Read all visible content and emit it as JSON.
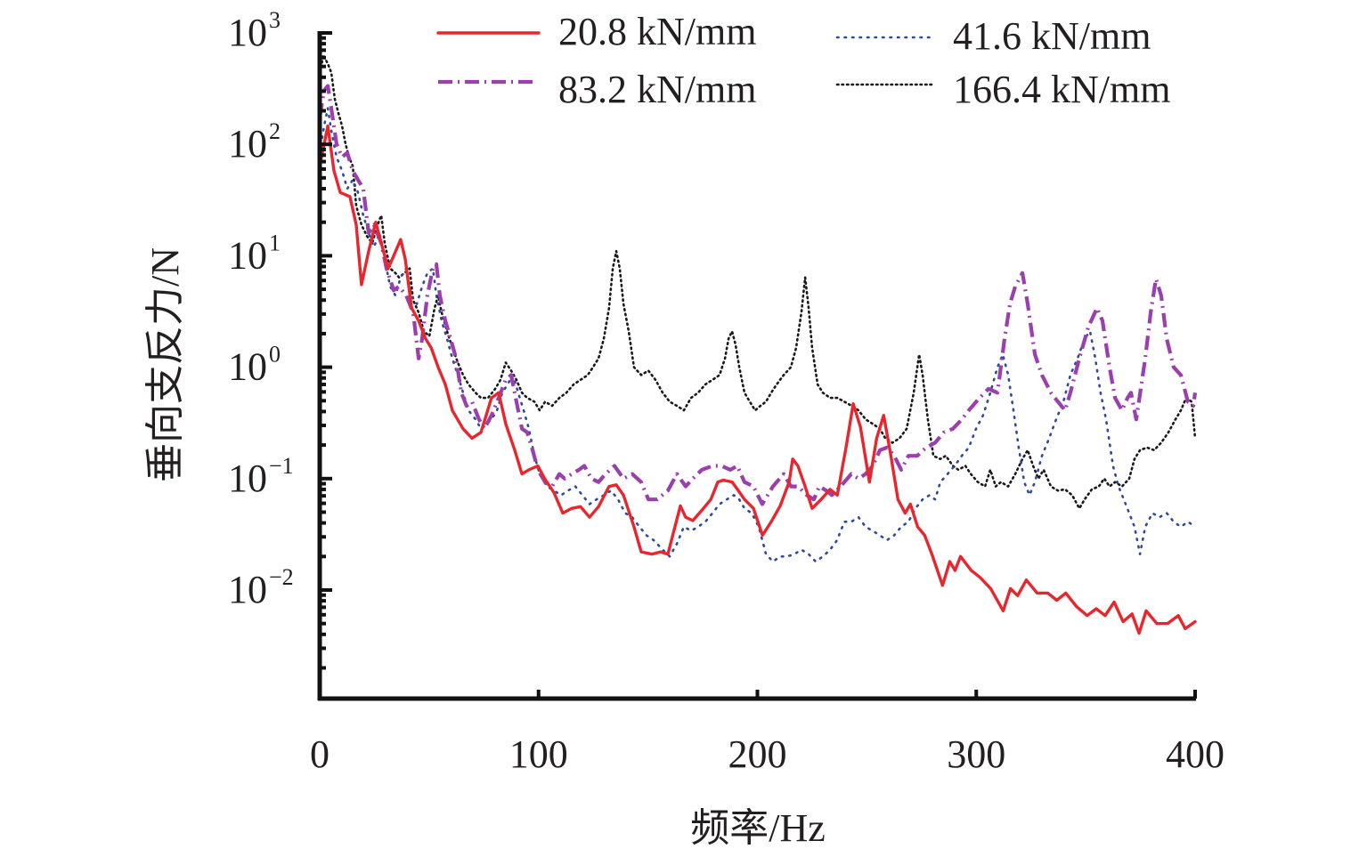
{
  "chart_data": {
    "type": "line",
    "title": "",
    "xlabel": "频率/Hz",
    "ylabel": "垂向支反力/N",
    "xscale": "linear",
    "yscale": "log",
    "xlim": [
      0,
      400
    ],
    "ylim": [
      0.00106,
      1000
    ],
    "xticks": [
      0,
      100,
      200,
      300,
      400
    ],
    "xtick_labels": [
      "0",
      "100",
      "200",
      "300",
      "400"
    ],
    "yticks": [
      1000,
      100,
      10,
      1,
      0.1,
      0.01
    ],
    "ytick_labels": [
      {
        "base": "10",
        "exp": "3"
      },
      {
        "base": "10",
        "exp": "2"
      },
      {
        "base": "10",
        "exp": "1"
      },
      {
        "base": "10",
        "exp": "0"
      },
      {
        "base": "10",
        "exp": "−1"
      },
      {
        "base": "10",
        "exp": "−2"
      }
    ],
    "grid": false,
    "legend": {
      "position": "top",
      "columns": 2
    },
    "series": [
      {
        "name": "20.8 kN/mm",
        "color": "#e8262d",
        "style": "solid",
        "x": [
          0,
          3.7,
          6.5,
          9.4,
          13.8,
          16.7,
          19.1,
          22.4,
          25.6,
          28.1,
          31.3,
          33.8,
          37.0,
          39.1,
          42.0,
          45.2,
          48.4,
          50.9,
          54.1,
          57.4,
          60.6,
          65.5,
          69.6,
          73.7,
          78.5,
          81.8,
          85.0,
          89.1,
          92.4,
          95.6,
          99.7,
          102.8,
          107.0,
          111.1,
          115.1,
          119.2,
          123.3,
          127.4,
          132.2,
          135.5,
          138.8,
          143.6,
          146.9,
          151.8,
          155.8,
          159.1,
          162.3,
          164.8,
          167.2,
          170.5,
          174.6,
          178.7,
          181.9,
          184.4,
          188.5,
          190.9,
          194.1,
          198.2,
          202.3,
          206.3,
          210.4,
          214.5,
          216.1,
          218.5,
          221.8,
          225.0,
          229.1,
          233.2,
          236.5,
          240.5,
          243.8,
          247.1,
          251.2,
          254.5,
          257.7,
          261.0,
          264.2,
          267.5,
          269.9,
          273.2,
          276.4,
          279.7,
          284.6,
          287.9,
          290.3,
          292.8,
          297.7,
          301.7,
          306.6,
          312.3,
          315.6,
          318.9,
          322.9,
          327.8,
          332.7,
          336.8,
          340.9,
          345.8,
          350.7,
          354.8,
          358.9,
          363.0,
          367.1,
          371.2,
          374.4,
          377.6,
          382.5,
          387.4,
          392.3,
          395.5,
          400
        ],
        "y": [
          64,
          146,
          58,
          37,
          34,
          19,
          5.5,
          11,
          20,
          13,
          7.7,
          10,
          14,
          9.3,
          3.4,
          2.6,
          1.8,
          1.5,
          1.0,
          0.7,
          0.41,
          0.28,
          0.23,
          0.26,
          0.53,
          0.59,
          0.31,
          0.18,
          0.11,
          0.12,
          0.13,
          0.1,
          0.075,
          0.049,
          0.054,
          0.056,
          0.045,
          0.056,
          0.085,
          0.088,
          0.071,
          0.037,
          0.022,
          0.021,
          0.022,
          0.021,
          0.037,
          0.057,
          0.045,
          0.042,
          0.052,
          0.065,
          0.093,
          0.097,
          0.093,
          0.08,
          0.065,
          0.054,
          0.031,
          0.041,
          0.057,
          0.093,
          0.15,
          0.13,
          0.085,
          0.054,
          0.065,
          0.08,
          0.071,
          0.19,
          0.47,
          0.29,
          0.093,
          0.23,
          0.37,
          0.16,
          0.065,
          0.049,
          0.059,
          0.037,
          0.031,
          0.021,
          0.011,
          0.018,
          0.015,
          0.02,
          0.015,
          0.013,
          0.0103,
          0.0065,
          0.0103,
          0.0089,
          0.0123,
          0.0094,
          0.0094,
          0.0081,
          0.0094,
          0.0071,
          0.0059,
          0.0068,
          0.0059,
          0.0078,
          0.0052,
          0.0061,
          0.0041,
          0.0065,
          0.005,
          0.005,
          0.0059,
          0.0045,
          0.0052
        ]
      },
      {
        "name": "41.6 kN/mm",
        "color": "#2e4a9a",
        "style": "dotted",
        "x": [
          0,
          2.0,
          3.7,
          5.3,
          7.7,
          10.2,
          12.6,
          15.1,
          17.5,
          19.9,
          22.4,
          24.8,
          27.3,
          29.7,
          32.2,
          34.6,
          37.0,
          39.5,
          41.9,
          44.4,
          46.8,
          49.2,
          51.7,
          53.3,
          55.7,
          58.2,
          60.6,
          63.1,
          65.5,
          68.0,
          71.2,
          73.7,
          76.1,
          78.5,
          81.0,
          83.4,
          85.8,
          88.3,
          90.7,
          93.2,
          95.6,
          98.1,
          100.5,
          103.8,
          107.0,
          110.3,
          113.5,
          116.8,
          120.0,
          123.3,
          126.5,
          129.8,
          133.1,
          136.3,
          139.6,
          142.8,
          146.1,
          149.3,
          152.6,
          156.7,
          159.9,
          163.2,
          166.4,
          169.7,
          172.9,
          176.2,
          179.5,
          182.7,
          186.0,
          189.2,
          191.7,
          194.1,
          197.4,
          200.6,
          203.9,
          207.1,
          210.4,
          213.6,
          216.9,
          220.1,
          223.4,
          226.6,
          229.9,
          233.2,
          236.4,
          239.7,
          242.9,
          246.2,
          249.4,
          252.7,
          255.9,
          259.2,
          262.5,
          265.7,
          269.0,
          272.2,
          275.5,
          278.7,
          281.2,
          283.6,
          286.9,
          290.1,
          293.4,
          296.6,
          299.9,
          303.1,
          306.4,
          309.7,
          312.1,
          314.6,
          317.0,
          319.4,
          321.9,
          324.3,
          326.8,
          330.0,
          333.3,
          336.5,
          339.8,
          343.0,
          346.3,
          349.5,
          352.0,
          354.4,
          356.8,
          359.3,
          362.5,
          365.0,
          367.4,
          369.9,
          372.3,
          374.8,
          377.2,
          380.5,
          383.7,
          387.0,
          390.2,
          393.5,
          396.7,
          400
        ],
        "y": [
          84,
          146,
          211,
          133,
          77,
          58,
          40,
          48,
          37,
          23,
          16,
          12,
          16,
          9.3,
          5.3,
          4.4,
          6.4,
          7.7,
          4.4,
          3.7,
          5.3,
          7.0,
          7.7,
          4.4,
          2.6,
          1.8,
          1.2,
          0.85,
          0.59,
          0.41,
          0.34,
          0.28,
          0.31,
          0.34,
          0.41,
          0.59,
          0.7,
          0.85,
          0.59,
          0.41,
          0.28,
          0.16,
          0.11,
          0.085,
          0.078,
          0.071,
          0.078,
          0.085,
          0.071,
          0.059,
          0.065,
          0.071,
          0.078,
          0.065,
          0.049,
          0.045,
          0.037,
          0.031,
          0.028,
          0.023,
          0.02,
          0.026,
          0.037,
          0.034,
          0.037,
          0.041,
          0.049,
          0.059,
          0.065,
          0.071,
          0.065,
          0.054,
          0.049,
          0.037,
          0.021,
          0.018,
          0.02,
          0.02,
          0.021,
          0.023,
          0.021,
          0.018,
          0.02,
          0.023,
          0.028,
          0.041,
          0.041,
          0.045,
          0.037,
          0.034,
          0.031,
          0.028,
          0.031,
          0.037,
          0.041,
          0.054,
          0.065,
          0.071,
          0.065,
          0.093,
          0.11,
          0.13,
          0.16,
          0.19,
          0.28,
          0.37,
          0.59,
          1.0,
          1.3,
          0.85,
          0.41,
          0.19,
          0.093,
          0.071,
          0.093,
          0.16,
          0.23,
          0.34,
          0.49,
          0.85,
          1.2,
          1.8,
          2.1,
          1.2,
          0.59,
          0.34,
          0.13,
          0.085,
          0.065,
          0.049,
          0.037,
          0.021,
          0.037,
          0.049,
          0.045,
          0.049,
          0.041,
          0.037,
          0.041,
          0.037
        ]
      },
      {
        "name": "83.2 kN/mm",
        "color": "#9b3fae",
        "style": "dash-dot",
        "x": [
          0,
          2.0,
          3.7,
          5.3,
          7.7,
          10.2,
          12.6,
          15.1,
          17.5,
          19.9,
          22.4,
          24.8,
          28.1,
          30.5,
          33.8,
          36.2,
          39.5,
          42.7,
          45.2,
          46.8,
          49.2,
          51.7,
          53.3,
          54.9,
          57.4,
          59.8,
          62.3,
          64.7,
          67.1,
          69.6,
          72.8,
          75.3,
          78.5,
          81.8,
          85.0,
          87.5,
          89.9,
          92.4,
          94.8,
          97.3,
          99.7,
          103.0,
          106.2,
          109.5,
          111.9,
          115.2,
          118.4,
          120.9,
          124.1,
          127.4,
          130.6,
          134.7,
          138.8,
          142.8,
          146.9,
          150.2,
          154.2,
          159.1,
          163.2,
          167.2,
          170.5,
          174.6,
          179.5,
          183.5,
          187.6,
          190.8,
          194.1,
          198.2,
          202.2,
          207.1,
          212.0,
          215.3,
          218.5,
          222.6,
          225.8,
          228.3,
          231.5,
          234.0,
          238.0,
          242.9,
          246.2,
          249.4,
          252.7,
          256.0,
          259.2,
          262.5,
          265.7,
          269.0,
          273.0,
          277.1,
          281.2,
          285.2,
          289.3,
          293.4,
          296.6,
          301.5,
          305.6,
          309.7,
          312.9,
          315.4,
          317.8,
          321.1,
          323.5,
          326.8,
          330.0,
          334.1,
          337.3,
          340.6,
          343.0,
          347.1,
          351.2,
          355.2,
          357.7,
          360.9,
          363.4,
          366.6,
          369.1,
          370.7,
          373.1,
          377.2,
          379.7,
          382.1,
          384.5,
          387.0,
          390.2,
          393.5,
          396.7,
          399.2,
          400
        ],
        "y": [
          175,
          305,
          334,
          211,
          101,
          77,
          84,
          58,
          48,
          40,
          16,
          19,
          13,
          7.7,
          4.9,
          5.3,
          4.4,
          3.1,
          1.2,
          1.8,
          4.4,
          7.7,
          8.4,
          4.4,
          2.6,
          1.8,
          1.2,
          0.59,
          0.45,
          0.49,
          0.34,
          0.28,
          0.37,
          0.53,
          0.77,
          0.85,
          0.49,
          0.28,
          0.26,
          0.18,
          0.12,
          0.093,
          0.085,
          0.11,
          0.1,
          0.11,
          0.12,
          0.13,
          0.1,
          0.093,
          0.11,
          0.13,
          0.1,
          0.11,
          0.093,
          0.065,
          0.065,
          0.078,
          0.11,
          0.085,
          0.1,
          0.12,
          0.13,
          0.13,
          0.12,
          0.13,
          0.093,
          0.085,
          0.059,
          0.085,
          0.11,
          0.085,
          0.085,
          0.071,
          0.065,
          0.085,
          0.078,
          0.071,
          0.085,
          0.11,
          0.1,
          0.11,
          0.13,
          0.18,
          0.19,
          0.16,
          0.12,
          0.16,
          0.16,
          0.19,
          0.21,
          0.26,
          0.28,
          0.34,
          0.41,
          0.53,
          0.64,
          0.59,
          1.8,
          3.7,
          5.3,
          7.0,
          3.7,
          1.3,
          0.85,
          0.59,
          0.49,
          0.41,
          0.59,
          1.2,
          2.3,
          3.4,
          2.6,
          1.0,
          0.53,
          0.41,
          0.53,
          0.59,
          0.34,
          1.2,
          3.1,
          6.2,
          4.4,
          1.8,
          1.0,
          0.85,
          0.49,
          0.45,
          0.59
        ]
      },
      {
        "name": "166.4 kN/mm",
        "color": "#1a1a1a",
        "style": "dotted-dense",
        "x": [
          0,
          1.6,
          3.7,
          5.3,
          6.9,
          8.5,
          10.2,
          11.8,
          13.4,
          15.1,
          16.7,
          19.1,
          21.6,
          24.0,
          26.5,
          28.1,
          29.7,
          32.2,
          34.6,
          36.2,
          38.7,
          41.1,
          42.7,
          45.2,
          47.6,
          50.1,
          52.5,
          54.1,
          55.7,
          58.2,
          60.6,
          63.1,
          65.5,
          68.0,
          71.2,
          73.7,
          76.9,
          80.2,
          82.6,
          85.0,
          87.5,
          89.9,
          92.4,
          94.8,
          98.1,
          100.5,
          103.0,
          106.2,
          109.5,
          112.7,
          116.0,
          119.2,
          122.5,
          124.9,
          127.4,
          129.8,
          132.2,
          133.9,
          135.5,
          137.1,
          138.8,
          141.2,
          143.6,
          146.9,
          150.2,
          153.4,
          156.7,
          159.9,
          163.2,
          166.4,
          169.7,
          172.9,
          176.2,
          179.5,
          182.7,
          185.2,
          186.8,
          188.4,
          190.0,
          191.7,
          194.1,
          196.5,
          199.0,
          201.4,
          203.9,
          206.3,
          208.8,
          212.0,
          215.3,
          217.7,
          220.1,
          221.8,
          223.4,
          225.0,
          227.5,
          229.9,
          233.2,
          236.5,
          239.7,
          243.0,
          246.2,
          249.5,
          252.7,
          256.0,
          258.4,
          261.7,
          264.9,
          268.2,
          271.4,
          273.9,
          275.5,
          277.9,
          280.4,
          283.6,
          286.1,
          289.3,
          291.8,
          295.0,
          297.5,
          300.7,
          304.0,
          306.4,
          308.9,
          311.3,
          314.6,
          317.8,
          321.1,
          323.5,
          326.0,
          328.4,
          330.8,
          334.1,
          337.3,
          340.6,
          343.8,
          347.1,
          349.5,
          352.8,
          356.0,
          358.5,
          360.9,
          363.4,
          366.6,
          369.9,
          372.3,
          374.8,
          378.0,
          381.3,
          384.5,
          387.8,
          391.0,
          393.5,
          395.9,
          398.4,
          400
        ],
        "y": [
          402,
          636,
          529,
          440,
          254,
          192,
          146,
          101,
          77,
          64,
          28,
          19,
          15,
          13,
          19,
          23,
          13,
          7.7,
          7.0,
          6.4,
          7.0,
          7.7,
          4.0,
          3.1,
          2.1,
          1.9,
          3.4,
          4.4,
          3.1,
          2.1,
          1.5,
          1.1,
          0.85,
          0.7,
          0.59,
          0.53,
          0.53,
          0.64,
          0.77,
          1.1,
          0.93,
          0.77,
          0.59,
          0.53,
          0.49,
          0.41,
          0.49,
          0.45,
          0.53,
          0.59,
          0.7,
          0.77,
          0.85,
          1.0,
          1.2,
          1.8,
          3.4,
          7.7,
          11,
          7.7,
          3.7,
          2.1,
          1.0,
          0.85,
          0.93,
          0.77,
          0.59,
          0.49,
          0.45,
          0.41,
          0.53,
          0.59,
          0.7,
          0.77,
          0.85,
          1.2,
          1.8,
          2.1,
          1.6,
          1.0,
          0.59,
          0.49,
          0.41,
          0.45,
          0.49,
          0.59,
          0.7,
          0.85,
          1.0,
          1.5,
          3.1,
          6.4,
          3.4,
          1.5,
          0.7,
          0.59,
          0.53,
          0.53,
          0.49,
          0.45,
          0.41,
          0.34,
          0.31,
          0.28,
          0.23,
          0.21,
          0.23,
          0.28,
          0.59,
          1.3,
          0.85,
          0.34,
          0.16,
          0.15,
          0.16,
          0.13,
          0.12,
          0.13,
          0.11,
          0.093,
          0.085,
          0.12,
          0.085,
          0.093,
          0.085,
          0.11,
          0.15,
          0.18,
          0.13,
          0.1,
          0.12,
          0.085,
          0.078,
          0.08,
          0.071,
          0.054,
          0.065,
          0.08,
          0.085,
          0.1,
          0.085,
          0.093,
          0.085,
          0.1,
          0.15,
          0.18,
          0.19,
          0.18,
          0.21,
          0.26,
          0.34,
          0.41,
          0.53,
          0.49,
          0.23
        ]
      }
    ]
  }
}
